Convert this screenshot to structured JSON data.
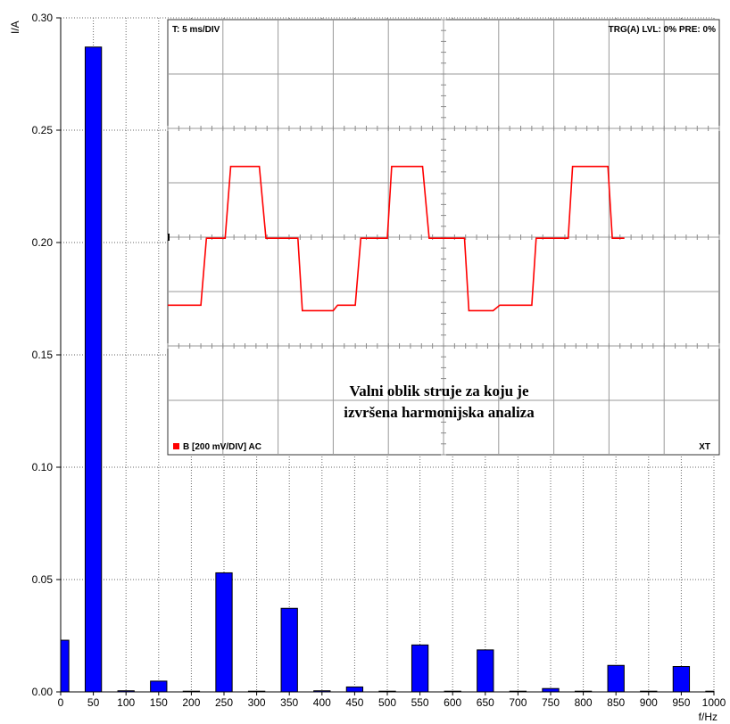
{
  "chart_data": {
    "type": "bar",
    "xlabel": "f/Hz",
    "ylabel": "I/A",
    "xlim": [
      0,
      1000
    ],
    "ylim": [
      0,
      0.3
    ],
    "x_ticks": [
      "0",
      "50",
      "100",
      "150",
      "200",
      "250",
      "300",
      "350",
      "400",
      "450",
      "500",
      "550",
      "600",
      "650",
      "700",
      "750",
      "800",
      "850",
      "900",
      "950",
      "1000"
    ],
    "y_ticks": [
      "0.00",
      "0.05",
      "0.10",
      "0.15",
      "0.20",
      "0.25",
      "0.30"
    ],
    "grid": "dotted",
    "bar_color": "#0000ff",
    "categories": [
      0,
      50,
      100,
      150,
      200,
      250,
      300,
      350,
      400,
      450,
      500,
      550,
      600,
      650,
      700,
      750,
      800,
      850,
      900,
      950,
      1000
    ],
    "values": [
      0.023,
      0.287,
      0.0005,
      0.0048,
      0.0,
      0.053,
      0.0,
      0.0372,
      0.0005,
      0.0022,
      0.0,
      0.0209,
      0.0,
      0.0187,
      0.0,
      0.0015,
      0.0,
      0.0118,
      0.0,
      0.0113,
      0.0
    ]
  },
  "inset": {
    "top_left": "T: 5 ms/DIV",
    "top_right": "TRG(A) LVL: 0% PRE: 0%",
    "bottom_left": "B [200 mV/DIV] AC",
    "bottom_right": "XT",
    "caption_line1": "Valni oblik struje za koju je",
    "caption_line2": "izvršena harmonijska analiza",
    "trace_color": "#ff0000",
    "waveform": {
      "time_ms": [
        0,
        3,
        3.5,
        5.2,
        5.7,
        8.3,
        8.9,
        11.8,
        12.2,
        15.0,
        15.4,
        17.0,
        17.5,
        19.9,
        20.3,
        23.1,
        23.7,
        26.9,
        27.3,
        29.5,
        30.1,
        33.0,
        33.4,
        36.3,
        36.7,
        39.9,
        40.3,
        41.4
      ],
      "level_div": [
        -1.25,
        -1.25,
        -0.02,
        -0.02,
        1.3,
        1.3,
        -0.02,
        -0.02,
        -1.35,
        -1.35,
        -1.25,
        -1.25,
        -0.02,
        -0.02,
        1.3,
        1.3,
        -0.02,
        -0.02,
        -1.35,
        -1.35,
        -1.25,
        -1.25,
        -0.02,
        -0.02,
        1.3,
        1.3,
        -0.02,
        -0.02
      ]
    },
    "divisions_x": 10,
    "divisions_y": 8
  }
}
